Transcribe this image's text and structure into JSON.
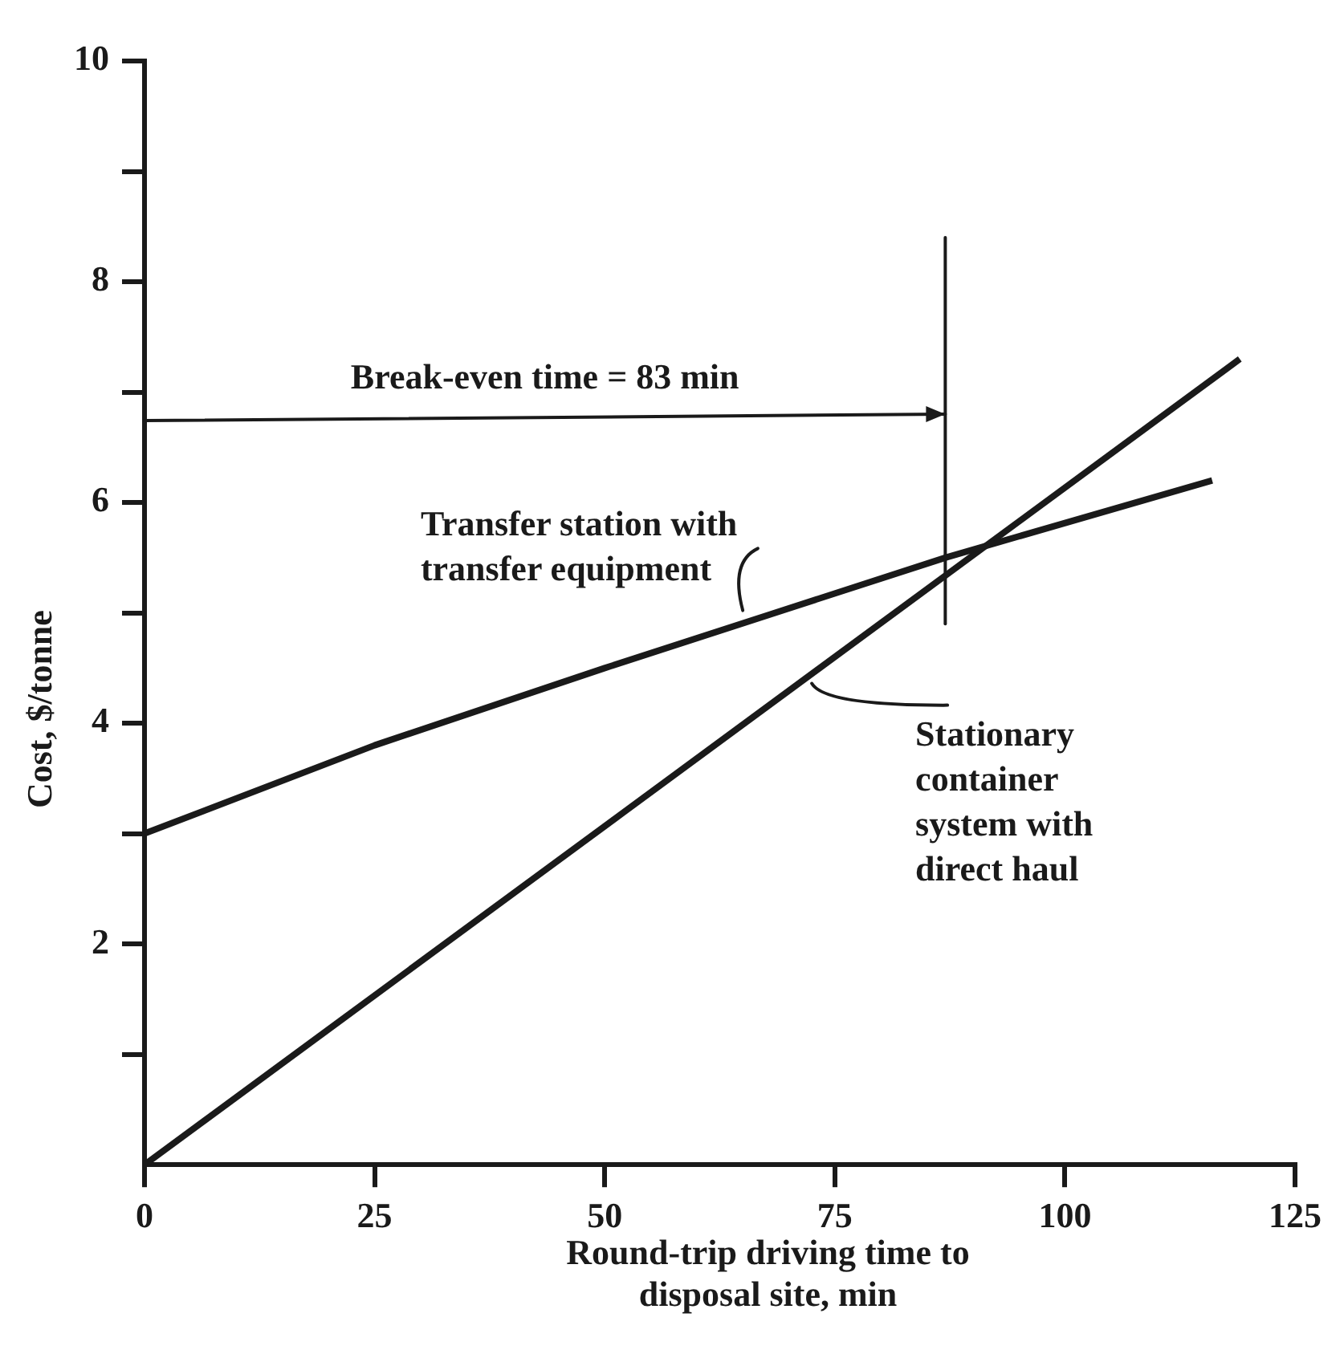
{
  "chart_data": {
    "type": "line",
    "xlabel": "Round-trip driving time to disposal site, min",
    "ylabel": "Cost, $/tonne",
    "series": [
      {
        "name": "Transfer station with transfer equipment",
        "color": "#1a1a1a",
        "x": [
          0,
          25,
          50,
          87,
          116
        ],
        "values": [
          3,
          3.8,
          4.5,
          5.5,
          6.2
        ]
      },
      {
        "name": "Stationary container system with direct haul",
        "color": "#1a1a1a",
        "x": [
          0,
          119
        ],
        "values": [
          0,
          7.3
        ]
      }
    ],
    "xlim": [
      0,
      125
    ],
    "xticks": [
      0,
      25,
      50,
      75,
      100,
      125
    ],
    "ylim": [
      0,
      10
    ],
    "yticks": [
      {
        "value": 1,
        "label": null
      },
      2,
      {
        "value": 3,
        "label": null
      },
      4,
      {
        "value": 5,
        "label": null
      },
      6,
      {
        "value": 7,
        "label": null
      },
      8,
      {
        "value": 9,
        "label": null
      },
      10
    ],
    "ref_lines": [
      {
        "axis": "x",
        "value": 87,
        "label": null
      }
    ],
    "annotations": [
      "Break-even time = 83 min"
    ],
    "grid": false,
    "legend": false,
    "marker": "none",
    "line_style": "solid"
  }
}
